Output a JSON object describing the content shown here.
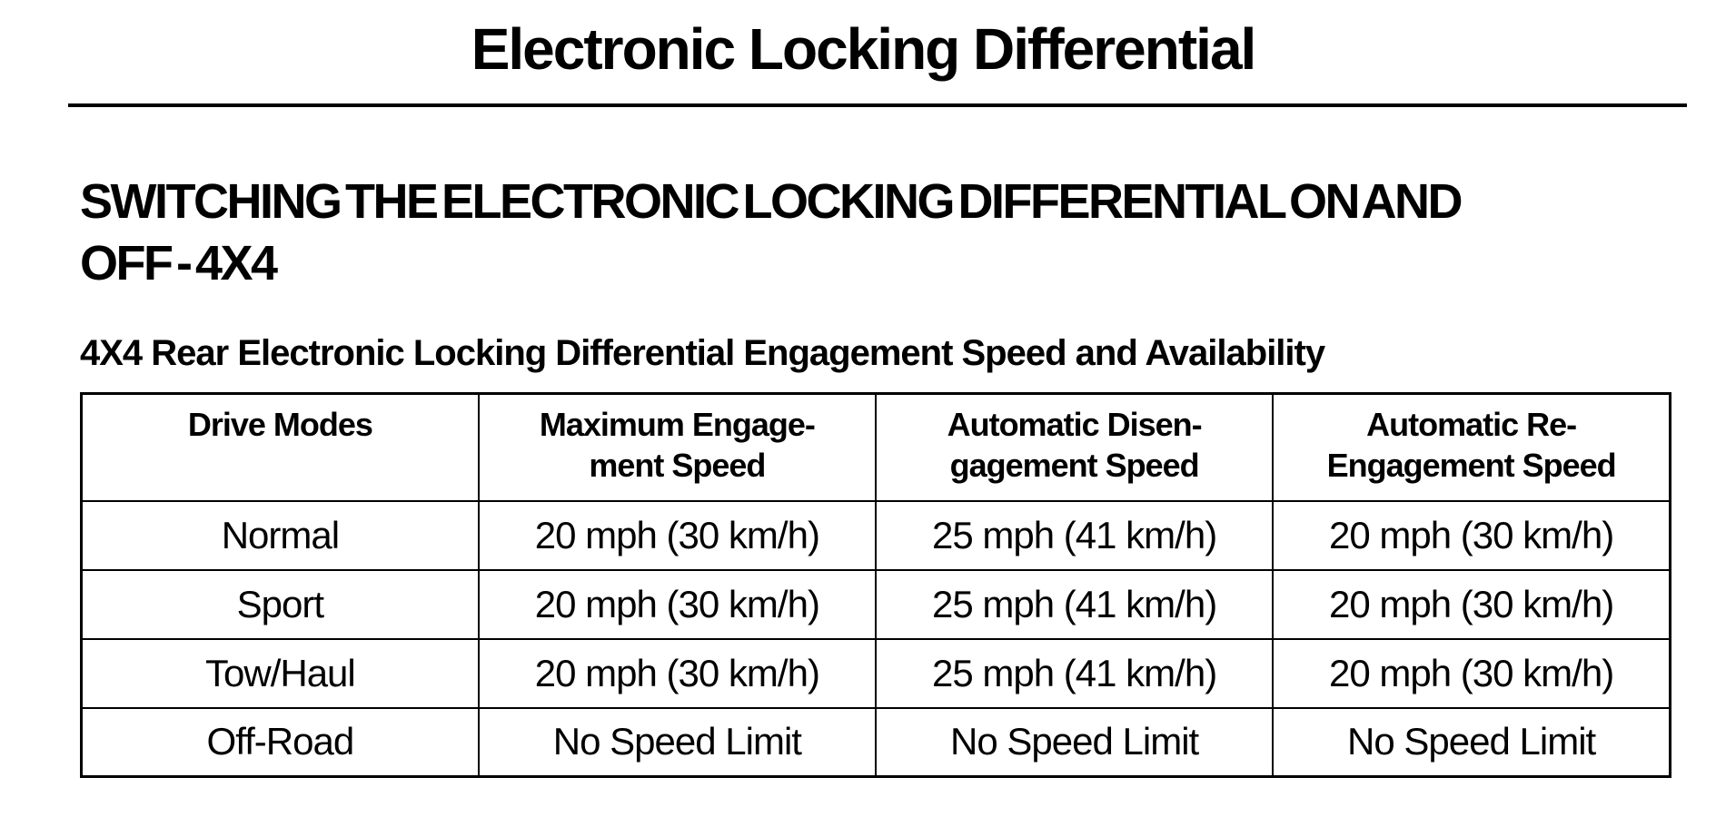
{
  "page": {
    "title": "Electronic Locking Differential"
  },
  "section": {
    "heading_lines": [
      "SWITCHING THE ELECTRONIC LOCKING DIFFERENTIAL ON AND",
      "OFF - 4X4"
    ],
    "subheading": "4X4 Rear Electronic Locking Differential Engagement Speed and Availability"
  },
  "table": {
    "headers": [
      {
        "label": "Drive Modes",
        "lines": [
          "Drive Modes"
        ]
      },
      {
        "label": "Maximum Engagement Speed",
        "lines": [
          "Maximum Engage-",
          "ment Speed"
        ]
      },
      {
        "label": "Automatic Disengagement Speed",
        "lines": [
          "Automatic Disen-",
          "gagement Speed"
        ]
      },
      {
        "label": "Automatic Re-Engagement Speed",
        "lines": [
          "Automatic Re-",
          "Engagement Speed"
        ]
      }
    ],
    "rows": [
      {
        "cells": [
          "Normal",
          "20 mph (30 km/h)",
          "25 mph (41 km/h)",
          "20 mph (30 km/h)"
        ]
      },
      {
        "cells": [
          "Sport",
          "20 mph (30 km/h)",
          "25 mph (41 km/h)",
          "20 mph (30 km/h)"
        ]
      },
      {
        "cells": [
          "Tow/Haul",
          "20 mph (30 km/h)",
          "25 mph (41 km/h)",
          "20 mph (30 km/h)"
        ]
      },
      {
        "cells": [
          "Off-Road",
          "No Speed Limit",
          "No Speed Limit",
          "No Speed Limit"
        ]
      }
    ]
  },
  "colors": {
    "background": "#ffffff",
    "text": "#000000",
    "border": "#000000"
  }
}
